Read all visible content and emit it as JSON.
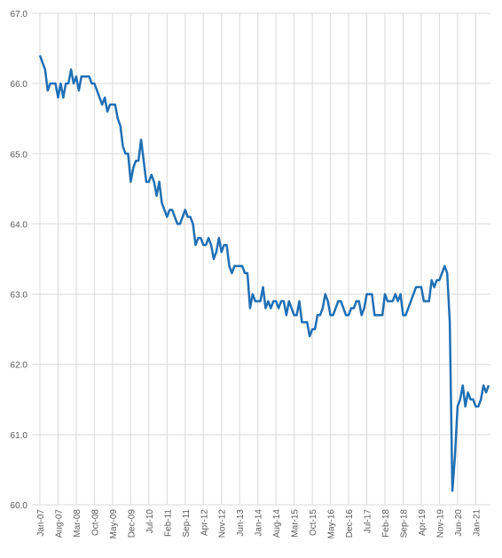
{
  "chart_data": {
    "type": "line",
    "categories": [
      "Jan-07",
      null,
      null,
      null,
      null,
      null,
      null,
      "Aug-07",
      null,
      null,
      null,
      null,
      null,
      null,
      "Mar-08",
      null,
      null,
      null,
      null,
      null,
      null,
      "Oct-08",
      null,
      null,
      null,
      null,
      null,
      null,
      "May-09",
      null,
      null,
      null,
      null,
      null,
      null,
      "Dec-09",
      null,
      null,
      null,
      null,
      null,
      null,
      "Jul-10",
      null,
      null,
      null,
      null,
      null,
      null,
      "Feb-11",
      null,
      null,
      null,
      null,
      null,
      null,
      "Sep-11",
      null,
      null,
      null,
      null,
      null,
      null,
      "Apr-12",
      null,
      null,
      null,
      null,
      null,
      null,
      "Nov-12",
      null,
      null,
      null,
      null,
      null,
      null,
      "Jun-13",
      null,
      null,
      null,
      null,
      null,
      null,
      "Jan-14",
      null,
      null,
      null,
      null,
      null,
      null,
      "Aug-14",
      null,
      null,
      null,
      null,
      null,
      null,
      "Mar-15",
      null,
      null,
      null,
      null,
      null,
      null,
      "Oct-15",
      null,
      null,
      null,
      null,
      null,
      null,
      "May-16",
      null,
      null,
      null,
      null,
      null,
      null,
      "Dec-16",
      null,
      null,
      null,
      null,
      null,
      null,
      "Jul-17",
      null,
      null,
      null,
      null,
      null,
      null,
      "Feb-18",
      null,
      null,
      null,
      null,
      null,
      null,
      "Sep-18",
      null,
      null,
      null,
      null,
      null,
      null,
      "Apr-19",
      null,
      null,
      null,
      null,
      null,
      null,
      "Nov-19",
      null,
      null,
      null,
      null,
      null,
      null,
      "Jun-20",
      null,
      null,
      null,
      null,
      null,
      null,
      "Jan-21",
      null,
      null,
      null,
      null,
      null
    ],
    "series": [
      {
        "color": "#1f6fb5",
        "values": [
          66.4,
          66.3,
          66.2,
          65.9,
          66.0,
          66.0,
          66.0,
          65.8,
          66.0,
          65.8,
          66.0,
          66.0,
          66.2,
          66.0,
          66.1,
          65.9,
          66.1,
          66.1,
          66.1,
          66.1,
          66.0,
          66.0,
          65.9,
          65.8,
          65.7,
          65.8,
          65.6,
          65.7,
          65.7,
          65.7,
          65.5,
          65.4,
          65.1,
          65.0,
          65.0,
          64.6,
          64.8,
          64.9,
          64.9,
          65.2,
          64.9,
          64.6,
          64.6,
          64.7,
          64.6,
          64.4,
          64.6,
          64.3,
          64.2,
          64.1,
          64.2,
          64.2,
          64.1,
          64.0,
          64.0,
          64.1,
          64.2,
          64.1,
          64.1,
          64.0,
          63.7,
          63.8,
          63.8,
          63.7,
          63.7,
          63.8,
          63.7,
          63.5,
          63.6,
          63.8,
          63.6,
          63.7,
          63.7,
          63.4,
          63.3,
          63.4,
          63.4,
          63.4,
          63.4,
          63.3,
          63.3,
          62.8,
          63.0,
          62.9,
          62.9,
          62.9,
          63.1,
          62.8,
          62.9,
          62.8,
          62.9,
          62.9,
          62.8,
          62.9,
          62.9,
          62.7,
          62.9,
          62.8,
          62.7,
          62.7,
          62.9,
          62.6,
          62.6,
          62.6,
          62.4,
          62.5,
          62.5,
          62.7,
          62.7,
          62.8,
          63.0,
          62.9,
          62.7,
          62.7,
          62.8,
          62.9,
          62.9,
          62.8,
          62.7,
          62.7,
          62.8,
          62.8,
          62.9,
          62.9,
          62.7,
          62.8,
          63.0,
          63.0,
          63.0,
          62.7,
          62.7,
          62.7,
          62.7,
          63.0,
          62.9,
          62.9,
          62.9,
          63.0,
          62.9,
          63.0,
          62.7,
          62.7,
          62.8,
          62.9,
          63.0,
          63.1,
          63.1,
          63.1,
          62.9,
          62.9,
          62.9,
          63.2,
          63.1,
          63.2,
          63.2,
          63.3,
          63.4,
          63.3,
          62.6,
          60.2,
          60.7,
          61.4,
          61.5,
          61.7,
          61.4,
          61.6,
          61.5,
          61.5,
          61.4,
          61.4,
          61.5,
          61.7,
          61.6,
          61.7
        ]
      }
    ],
    "ylim": [
      60,
      67
    ],
    "yticks": [
      {
        "value": 60,
        "label": "60.0"
      },
      {
        "value": 61,
        "label": "61.0"
      },
      {
        "value": 62,
        "label": "62.0"
      },
      {
        "value": 63,
        "label": "63.0"
      },
      {
        "value": 64,
        "label": "64.0"
      },
      {
        "value": 65,
        "label": "65.0"
      },
      {
        "value": 66,
        "label": "66.0"
      },
      {
        "value": 67,
        "label": "67.0"
      }
    ],
    "grid": true
  }
}
